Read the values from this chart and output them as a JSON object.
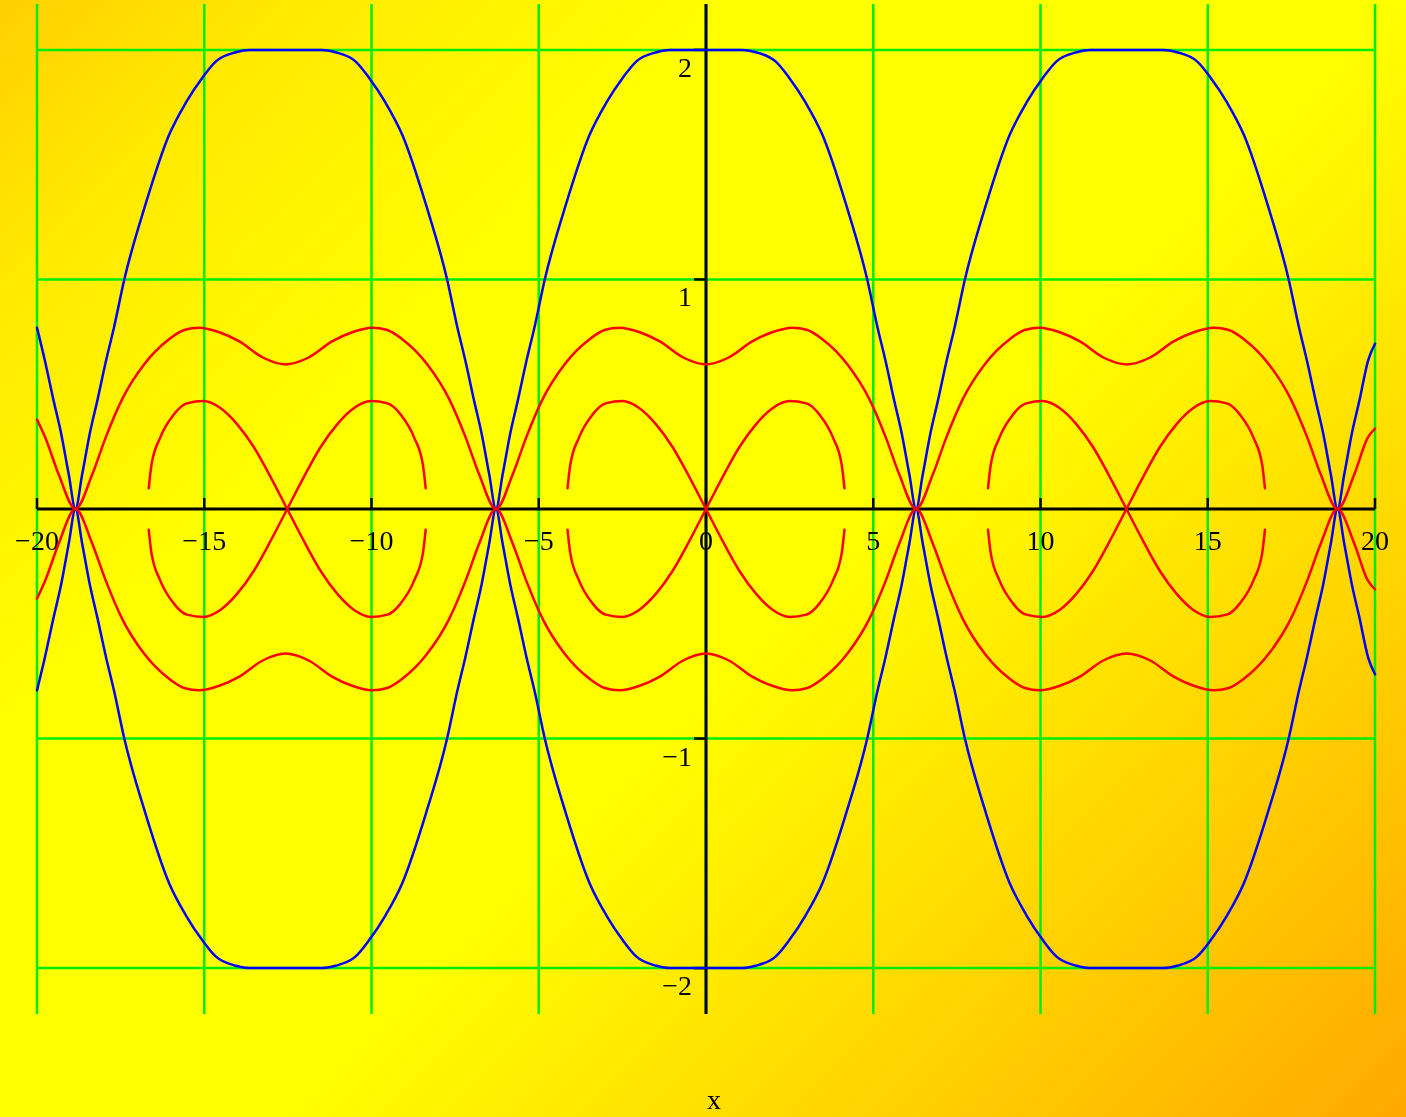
{
  "chart_data": {
    "type": "line",
    "xlabel": "x",
    "xlim": [
      -20,
      20
    ],
    "ylim": [
      -2.2,
      2.2
    ],
    "xticks": [
      -20,
      -15,
      -10,
      -5,
      0,
      5,
      10,
      15,
      20
    ],
    "yticks": [
      -2,
      -1,
      1,
      2
    ],
    "grid": true,
    "series": [
      {
        "color": "#0000ff",
        "x": [
          -20,
          -19.77,
          -19.5,
          -19.28,
          -19.05,
          -18.85,
          -18.65,
          -18.42,
          -18.2,
          -17.93,
          -17.7,
          -17.39,
          -16.75,
          -16.05,
          -15.55,
          -15.05,
          -14.65,
          -14.05,
          -13.65,
          -12.57,
          -11.48,
          -11.08,
          -10.48,
          -10.08,
          -9.58,
          -9.08,
          -8.38,
          -7.74,
          -7.43,
          -7.2,
          -6.93,
          -6.71,
          -6.48,
          -6.28,
          -6.08,
          -5.85,
          -5.63,
          -5.36,
          -5.13,
          -4.82,
          -4.18,
          -3.48,
          -2.98,
          -2.48,
          -2.08,
          -1.48,
          -1.08,
          0,
          1.08,
          1.48,
          2.08,
          2.48,
          2.98,
          3.48,
          4.18,
          4.82,
          5.13,
          5.36,
          5.63,
          5.85,
          6.08,
          6.28,
          6.48,
          6.71,
          6.93,
          7.2,
          7.43,
          7.74,
          8.38,
          9.08,
          9.58,
          10.08,
          10.48,
          11.08,
          11.48,
          12.58,
          13.68,
          14.08,
          14.68,
          15.08,
          15.58,
          16.08,
          16.78,
          17.42,
          17.73,
          17.96,
          18.23,
          18.45,
          18.68,
          18.88,
          19.08,
          19.31,
          19.53,
          19.8,
          20
        ],
        "values": [
          0.79,
          0.65,
          0.47,
          0.33,
          0.15,
          0,
          0.15,
          0.33,
          0.47,
          0.65,
          0.79,
          1,
          1.33,
          1.63,
          1.77,
          1.88,
          1.95,
          1.99,
          2,
          2,
          2,
          1.99,
          1.95,
          1.88,
          1.77,
          1.63,
          1.33,
          1,
          0.79,
          0.65,
          0.47,
          0.33,
          0.15,
          0,
          0.15,
          0.33,
          0.47,
          0.65,
          0.79,
          1,
          1.33,
          1.63,
          1.77,
          1.88,
          1.95,
          1.99,
          2,
          2,
          2,
          1.99,
          1.95,
          1.88,
          1.77,
          1.63,
          1.33,
          1,
          0.79,
          0.65,
          0.47,
          0.33,
          0.15,
          0,
          0.15,
          0.33,
          0.47,
          0.65,
          0.79,
          1,
          1.33,
          1.63,
          1.77,
          1.88,
          1.95,
          1.99,
          2,
          2,
          2,
          1.99,
          1.95,
          1.88,
          1.77,
          1.63,
          1.33,
          1,
          0.79,
          0.65,
          0.47,
          0.33,
          0.15,
          0,
          0.15,
          0.33,
          0.47,
          0.65,
          0.72
        ]
      },
      {
        "color": "#0000ff",
        "x": [
          -20,
          -19.77,
          -19.5,
          -19.28,
          -19.05,
          -18.85,
          -18.65,
          -18.42,
          -18.2,
          -17.93,
          -17.7,
          -17.39,
          -16.75,
          -16.05,
          -15.55,
          -15.05,
          -14.65,
          -14.05,
          -13.65,
          -12.57,
          -11.48,
          -11.08,
          -10.48,
          -10.08,
          -9.58,
          -9.08,
          -8.38,
          -7.74,
          -7.43,
          -7.2,
          -6.93,
          -6.71,
          -6.48,
          -6.28,
          -6.08,
          -5.85,
          -5.63,
          -5.36,
          -5.13,
          -4.82,
          -4.18,
          -3.48,
          -2.98,
          -2.48,
          -2.08,
          -1.48,
          -1.08,
          0,
          1.08,
          1.48,
          2.08,
          2.48,
          2.98,
          3.48,
          4.18,
          4.82,
          5.13,
          5.36,
          5.63,
          5.85,
          6.08,
          6.28,
          6.48,
          6.71,
          6.93,
          7.2,
          7.43,
          7.74,
          8.38,
          9.08,
          9.58,
          10.08,
          10.48,
          11.08,
          11.48,
          12.58,
          13.68,
          14.08,
          14.68,
          15.08,
          15.58,
          16.08,
          16.78,
          17.42,
          17.73,
          17.96,
          18.23,
          18.45,
          18.68,
          18.88,
          19.08,
          19.31,
          19.53,
          19.8,
          20
        ],
        "values": [
          -0.79,
          -0.65,
          -0.47,
          -0.33,
          -0.15,
          0,
          -0.15,
          -0.33,
          -0.47,
          -0.65,
          -0.79,
          -1,
          -1.33,
          -1.63,
          -1.77,
          -1.88,
          -1.95,
          -1.99,
          -2,
          -2,
          -2,
          -1.99,
          -1.95,
          -1.88,
          -1.77,
          -1.63,
          -1.33,
          -1,
          -0.79,
          -0.65,
          -0.47,
          -0.33,
          -0.15,
          0,
          -0.15,
          -0.33,
          -0.47,
          -0.65,
          -0.79,
          -1,
          -1.33,
          -1.63,
          -1.77,
          -1.88,
          -1.95,
          -1.99,
          -2,
          -2,
          -2,
          -1.99,
          -1.95,
          -1.88,
          -1.77,
          -1.63,
          -1.33,
          -1,
          -0.79,
          -0.65,
          -0.47,
          -0.33,
          -0.15,
          0,
          -0.15,
          -0.33,
          -0.47,
          -0.65,
          -0.79,
          -1,
          -1.33,
          -1.63,
          -1.77,
          -1.88,
          -1.95,
          -1.99,
          -2,
          -2,
          -2,
          -1.99,
          -1.95,
          -1.88,
          -1.77,
          -1.63,
          -1.33,
          -1,
          -0.79,
          -0.65,
          -0.47,
          -0.33,
          -0.15,
          0,
          -0.15,
          -0.33,
          -0.47,
          -0.65,
          -0.72
        ]
      },
      {
        "color": "#ff0000",
        "x": [
          -20,
          -19.75,
          -19.35,
          -18.85,
          -18.35,
          -17.95,
          -17.45,
          -16.8,
          -16.05,
          -15.6,
          -15.15,
          -14.55,
          -13.95,
          -13.25,
          -12.57,
          -11.88,
          -11.18,
          -10.58,
          -9.98,
          -9.53,
          -9.08,
          -8.33,
          -7.68,
          -7.18,
          -6.78,
          -6.28,
          -5.78,
          -5.38,
          -4.88,
          -4.23,
          -3.48,
          -3.03,
          -2.58,
          -1.98,
          -1.38,
          -0.68,
          0,
          0.68,
          1.38,
          1.98,
          2.58,
          3.03,
          3.48,
          4.23,
          4.88,
          5.38,
          5.78,
          6.28,
          6.78,
          7.18,
          7.68,
          8.33,
          9.08,
          9.53,
          9.98,
          10.58,
          11.18,
          11.88,
          12.58,
          13.28,
          13.98,
          14.58,
          15.18,
          15.63,
          16.08,
          16.83,
          17.48,
          17.98,
          18.38,
          18.88,
          19.38,
          19.78,
          20
        ],
        "values": [
          0.39,
          0.31,
          0.15,
          0,
          0.15,
          0.31,
          0.48,
          0.63,
          0.74,
          0.78,
          0.79,
          0.77,
          0.73,
          0.66,
          0.63,
          0.66,
          0.73,
          0.77,
          0.79,
          0.78,
          0.74,
          0.63,
          0.48,
          0.31,
          0.15,
          0,
          0.15,
          0.31,
          0.48,
          0.63,
          0.74,
          0.78,
          0.79,
          0.77,
          0.73,
          0.66,
          0.63,
          0.66,
          0.73,
          0.77,
          0.79,
          0.78,
          0.74,
          0.63,
          0.48,
          0.31,
          0.15,
          0,
          0.15,
          0.31,
          0.48,
          0.63,
          0.74,
          0.78,
          0.79,
          0.77,
          0.73,
          0.66,
          0.63,
          0.66,
          0.73,
          0.77,
          0.79,
          0.78,
          0.74,
          0.63,
          0.48,
          0.31,
          0.15,
          0,
          0.15,
          0.31,
          0.35
        ]
      },
      {
        "color": "#ff0000",
        "x": [
          -20,
          -19.75,
          -19.35,
          -18.85,
          -18.35,
          -17.95,
          -17.45,
          -16.8,
          -16.05,
          -15.6,
          -15.15,
          -14.55,
          -13.95,
          -13.25,
          -12.57,
          -11.88,
          -11.18,
          -10.58,
          -9.98,
          -9.53,
          -9.08,
          -8.33,
          -7.68,
          -7.18,
          -6.78,
          -6.28,
          -5.78,
          -5.38,
          -4.88,
          -4.23,
          -3.48,
          -3.03,
          -2.58,
          -1.98,
          -1.38,
          -0.68,
          0,
          0.68,
          1.38,
          1.98,
          2.58,
          3.03,
          3.48,
          4.23,
          4.88,
          5.38,
          5.78,
          6.28,
          6.78,
          7.18,
          7.68,
          8.33,
          9.08,
          9.53,
          9.98,
          10.58,
          11.18,
          11.88,
          12.58,
          13.28,
          13.98,
          14.58,
          15.18,
          15.63,
          16.08,
          16.83,
          17.48,
          17.98,
          18.38,
          18.88,
          19.38,
          19.78,
          20
        ],
        "values": [
          -0.39,
          -0.31,
          -0.15,
          0,
          -0.15,
          -0.31,
          -0.48,
          -0.63,
          -0.74,
          -0.78,
          -0.79,
          -0.77,
          -0.73,
          -0.66,
          -0.63,
          -0.66,
          -0.73,
          -0.77,
          -0.79,
          -0.78,
          -0.74,
          -0.63,
          -0.48,
          -0.31,
          -0.15,
          0,
          -0.15,
          -0.31,
          -0.48,
          -0.63,
          -0.74,
          -0.78,
          -0.79,
          -0.77,
          -0.73,
          -0.66,
          -0.63,
          -0.66,
          -0.73,
          -0.77,
          -0.79,
          -0.78,
          -0.74,
          -0.63,
          -0.48,
          -0.31,
          -0.15,
          0,
          -0.15,
          -0.31,
          -0.48,
          -0.63,
          -0.74,
          -0.78,
          -0.79,
          -0.77,
          -0.73,
          -0.66,
          -0.63,
          -0.66,
          -0.73,
          -0.77,
          -0.79,
          -0.78,
          -0.74,
          -0.63,
          -0.48,
          -0.31,
          -0.15,
          0,
          -0.15,
          -0.31,
          -0.35
        ]
      },
      {
        "color": "#ff0000",
        "x": [
          -16.66,
          -16.58,
          -16.32,
          -15.92,
          -15.52,
          -15.02,
          -14.52,
          -14.02,
          -13.52,
          -13.02,
          -12.52,
          -12.02,
          -11.52,
          -11.02,
          -10.52,
          -10.02,
          -9.52,
          -9.12,
          -8.72,
          -8.46,
          -8.38
        ],
        "values": [
          0.09,
          0.19,
          0.31,
          0.41,
          0.46,
          0.47,
          0.44,
          0.37,
          0.27,
          0.14,
          0,
          -0.14,
          -0.27,
          -0.37,
          -0.44,
          -0.47,
          -0.46,
          -0.41,
          -0.31,
          -0.19,
          -0.09
        ]
      },
      {
        "color": "#ff0000",
        "x": [
          -16.66,
          -16.58,
          -16.32,
          -15.92,
          -15.52,
          -15.02,
          -14.52,
          -14.02,
          -13.52,
          -13.02,
          -12.52,
          -12.02,
          -11.52,
          -11.02,
          -10.52,
          -10.02,
          -9.52,
          -9.12,
          -8.72,
          -8.46,
          -8.38
        ],
        "values": [
          -0.09,
          -0.19,
          -0.31,
          -0.41,
          -0.46,
          -0.47,
          -0.44,
          -0.37,
          -0.27,
          -0.14,
          0,
          0.14,
          0.27,
          0.37,
          0.44,
          0.47,
          0.46,
          0.41,
          0.31,
          0.19,
          0.09
        ]
      },
      {
        "color": "#ff0000",
        "x": [
          -4.14,
          -4.06,
          -3.8,
          -3.4,
          -3,
          -2.5,
          -2,
          -1.5,
          -1,
          -0.5,
          0,
          0.5,
          1,
          1.5,
          2,
          2.5,
          3,
          3.4,
          3.8,
          4.06,
          4.14
        ],
        "values": [
          0.09,
          0.19,
          0.31,
          0.41,
          0.46,
          0.47,
          0.44,
          0.37,
          0.27,
          0.14,
          0,
          -0.14,
          -0.27,
          -0.37,
          -0.44,
          -0.47,
          -0.46,
          -0.41,
          -0.31,
          -0.19,
          -0.09
        ]
      },
      {
        "color": "#ff0000",
        "x": [
          -4.14,
          -4.06,
          -3.8,
          -3.4,
          -3,
          -2.5,
          -2,
          -1.5,
          -1,
          -0.5,
          0,
          0.5,
          1,
          1.5,
          2,
          2.5,
          3,
          3.4,
          3.8,
          4.06,
          4.14
        ],
        "values": [
          -0.09,
          -0.19,
          -0.31,
          -0.41,
          -0.46,
          -0.47,
          -0.44,
          -0.37,
          -0.27,
          -0.14,
          0,
          0.14,
          0.27,
          0.37,
          0.44,
          0.47,
          0.46,
          0.41,
          0.31,
          0.19,
          0.09
        ]
      },
      {
        "color": "#ff0000",
        "x": [
          8.43,
          8.51,
          8.77,
          9.17,
          9.57,
          10.07,
          10.57,
          11.07,
          11.57,
          12.07,
          12.57,
          13.07,
          13.57,
          14.07,
          14.57,
          15.07,
          15.57,
          15.97,
          16.37,
          16.63,
          16.71
        ],
        "values": [
          0.09,
          0.19,
          0.31,
          0.41,
          0.46,
          0.47,
          0.44,
          0.37,
          0.27,
          0.14,
          0,
          -0.14,
          -0.27,
          -0.37,
          -0.44,
          -0.47,
          -0.46,
          -0.41,
          -0.31,
          -0.19,
          -0.09
        ]
      },
      {
        "color": "#ff0000",
        "x": [
          8.43,
          8.51,
          8.77,
          9.17,
          9.57,
          10.07,
          10.57,
          11.07,
          11.57,
          12.07,
          12.57,
          13.07,
          13.57,
          14.07,
          14.57,
          15.07,
          15.57,
          15.97,
          16.37,
          16.63,
          16.71
        ],
        "values": [
          -0.09,
          -0.19,
          -0.31,
          -0.41,
          -0.46,
          -0.47,
          -0.44,
          -0.37,
          -0.27,
          -0.14,
          0,
          0.14,
          0.27,
          0.37,
          0.44,
          0.47,
          0.46,
          0.41,
          0.31,
          0.19,
          0.09
        ]
      }
    ]
  }
}
